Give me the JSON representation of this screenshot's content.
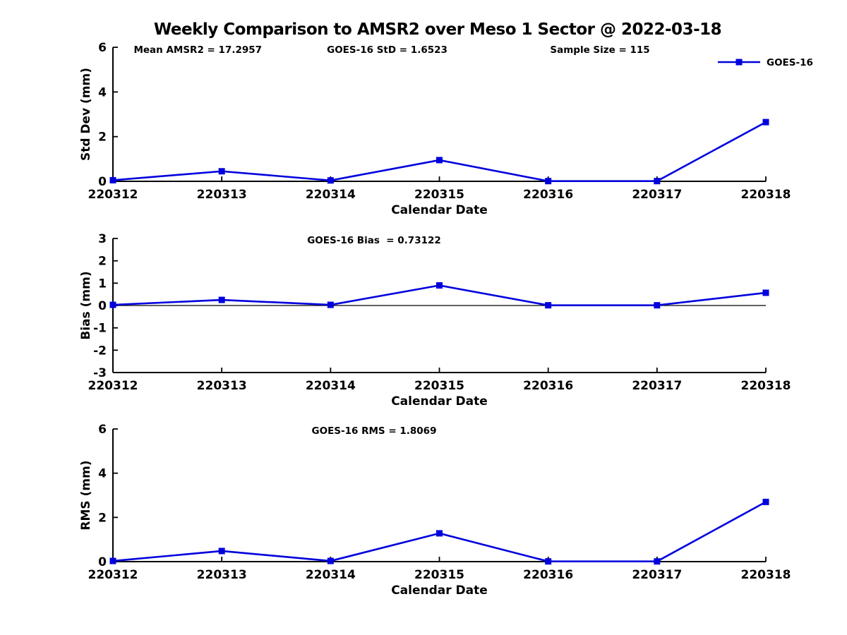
{
  "figure": {
    "title": "Weekly Comparison to AMSR2 over Meso 1 Sector @ 2022-03-18"
  },
  "colors": {
    "series": "#0000dd",
    "axis": "#000000",
    "text": "#000000",
    "background": "#ffffff"
  },
  "legend": {
    "label": "GOES-16",
    "marker": "filled-square",
    "position": "top-right"
  },
  "chart_data": [
    {
      "type": "line",
      "id": "std-dev",
      "annotations": [
        "Mean AMSR2 = 17.2957",
        "GOES-16 StD = 1.6523",
        "Sample Size = 115"
      ],
      "categories": [
        "220312",
        "220313",
        "220314",
        "220315",
        "220316",
        "220317",
        "220318"
      ],
      "series": [
        {
          "name": "GOES-16",
          "values": [
            0.05,
            0.45,
            0.04,
            0.95,
            0.01,
            0.01,
            2.65
          ]
        }
      ],
      "xlabel": "Calendar Date",
      "ylabel": "Std Dev (mm)",
      "ylim": [
        0,
        6
      ],
      "yticks": [
        0,
        2,
        4,
        6
      ],
      "grid": false,
      "has_legend": true
    },
    {
      "type": "line",
      "id": "bias",
      "title": "GOES-16 Bias  = 0.73122",
      "categories": [
        "220312",
        "220313",
        "220314",
        "220315",
        "220316",
        "220317",
        "220318"
      ],
      "series": [
        {
          "name": "GOES-16",
          "values": [
            0.03,
            0.25,
            0.03,
            0.9,
            0.01,
            0.01,
            0.57
          ]
        }
      ],
      "xlabel": "Calendar Date",
      "ylabel": "Bias (mm)",
      "ylim": [
        -3,
        3
      ],
      "yticks": [
        3,
        2,
        1,
        0,
        -1,
        -2,
        -3
      ],
      "zero_line": true,
      "grid": false,
      "has_legend": false
    },
    {
      "type": "line",
      "id": "rms",
      "title": "GOES-16 RMS = 1.8069",
      "categories": [
        "220312",
        "220313",
        "220314",
        "220315",
        "220316",
        "220317",
        "220318"
      ],
      "series": [
        {
          "name": "GOES-16",
          "values": [
            0.03,
            0.48,
            0.03,
            1.28,
            0.01,
            0.01,
            2.7
          ]
        }
      ],
      "xlabel": "Calendar Date",
      "ylabel": "RMS (mm)",
      "ylim": [
        0,
        6
      ],
      "yticks": [
        0,
        2,
        4,
        6
      ],
      "grid": false,
      "has_legend": false
    }
  ]
}
